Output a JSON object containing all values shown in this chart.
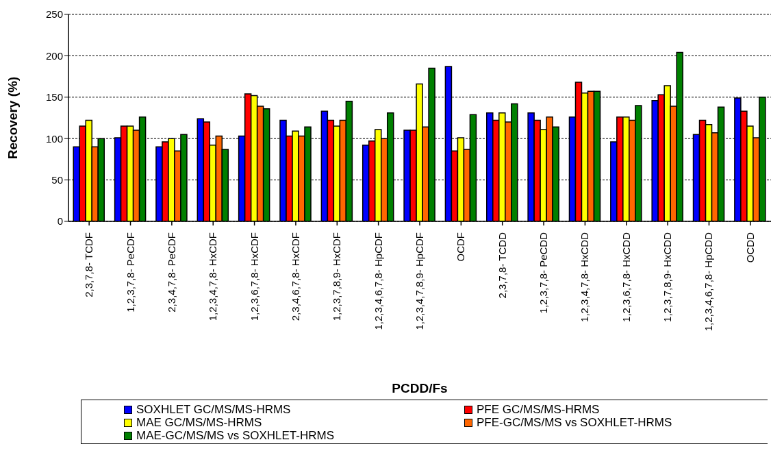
{
  "chart_data": {
    "type": "bar",
    "xlabel": "PCDD/Fs",
    "ylabel": "Recovery (%)",
    "categories": [
      "2,3,7,8- TCDF",
      "1,2,3,7,8- PeCDF",
      "2,3,4,7,8- PeCDF",
      "1,2,3,4,7,8- HxCDF",
      "1,2,3,6,7,8- HxCDF",
      "2,3,4,6,7,8- HxCDF",
      "1,2,3,7,8,9- HxCDF",
      "1,2,3,4,6,7,8- HpCDF",
      "1,2,3,4,7,8,9- HpCDF",
      "OCDF",
      "2,3,7,8- TCDD",
      "1,2,3,7,8- PeCDD",
      "1,2,3,4,7,8- HxCDD",
      "1,2,3,6,7,8- HxCDD",
      "1,2,3,7,8,9- HxCDD",
      "1,2,3,4,6,7,8- HpCDD",
      "OCDD"
    ],
    "series": [
      {
        "name": "SOXHLET GC/MS/MS-HRMS",
        "color": "#0000ff",
        "values": [
          90,
          101,
          90,
          124,
          103,
          122,
          133,
          92,
          110,
          187,
          131,
          131,
          126,
          96,
          146,
          105,
          149
        ]
      },
      {
        "name": "PFE GC/MS/MS-HRMS",
        "color": "#ff0000",
        "values": [
          115,
          115,
          96,
          120,
          154,
          103,
          122,
          97,
          110,
          85,
          122,
          122,
          168,
          126,
          153,
          122,
          133
        ]
      },
      {
        "name": "MAE GC/MS/MS-HRMS",
        "color": "#ffff00",
        "values": [
          122,
          115,
          100,
          92,
          152,
          109,
          115,
          111,
          166,
          101,
          131,
          111,
          155,
          126,
          164,
          117,
          115
        ]
      },
      {
        "name": "PFE-GC/MS/MS vs SOXHLET-HRMS",
        "color": "#ff6600",
        "values": [
          90,
          110,
          85,
          103,
          139,
          103,
          122,
          100,
          114,
          87,
          120,
          126,
          157,
          122,
          139,
          107,
          101
        ]
      },
      {
        "name": "MAE-GC/MS/MS vs SOXHLET-HRMS",
        "color": "#008000",
        "values": [
          100,
          126,
          105,
          87,
          136,
          114,
          145,
          131,
          185,
          129,
          142,
          114,
          157,
          140,
          204,
          138,
          150
        ]
      }
    ],
    "ylim": [
      0,
      250
    ],
    "yticks": [
      0,
      50,
      100,
      150,
      200,
      250
    ],
    "grid": "y",
    "legend": "bottom"
  }
}
